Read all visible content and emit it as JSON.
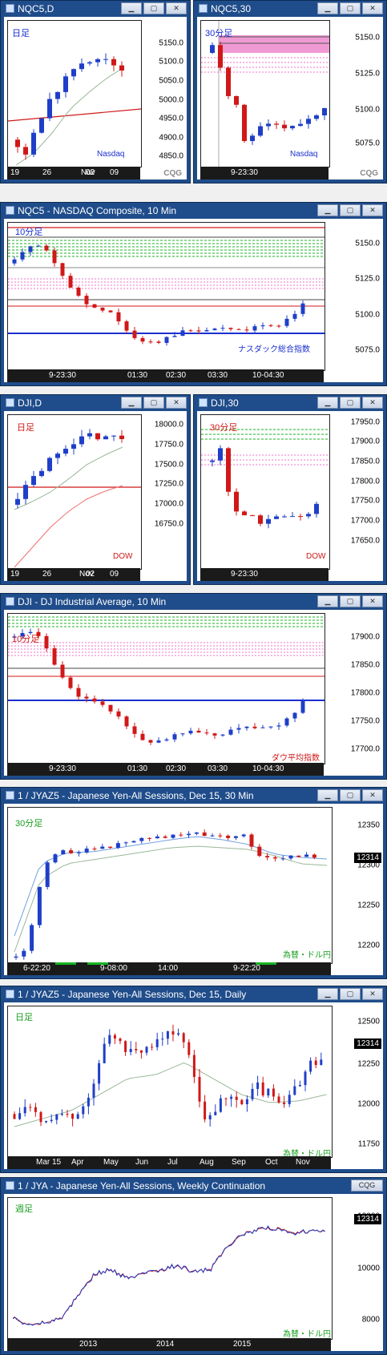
{
  "panels": {
    "nqc5_daily": {
      "title": "NQC5,D",
      "timeframe_label": "日足",
      "instrument_label": "Nasdaq",
      "y_ticks": [
        "5150.0",
        "5100.0",
        "5050.0",
        "5000.0",
        "4950.0",
        "4900.0",
        "4850.0"
      ],
      "x_ticks": [
        "19",
        "26",
        "Nov",
        "02",
        "09"
      ],
      "logo": "CQG"
    },
    "nqc5_30": {
      "title": "NQC5,30",
      "timeframe_label": "30分足",
      "instrument_label": "Nasdaq",
      "y_ticks": [
        "5150.0",
        "5125.0",
        "5100.0",
        "5075.0"
      ],
      "x_ticks": [
        "9-23:30"
      ],
      "logo": "CQG"
    },
    "nasdaq_10min": {
      "title": "NQC5 - NASDAQ Composite, 10 Min",
      "timeframe_label": "10分足",
      "instrument_label": "ナスダック総合指数",
      "y_ticks": [
        "5150.0",
        "5125.0",
        "5100.0",
        "5075.0"
      ],
      "x_ticks": [
        "9-23:30",
        "01:30",
        "02:30",
        "03:30",
        "10-04:30"
      ]
    },
    "dji_daily": {
      "title": "DJI,D",
      "timeframe_label": "日足",
      "instrument_label": "DOW",
      "y_ticks": [
        "18000.0",
        "17750.0",
        "17500.0",
        "17250.0",
        "17000.0",
        "16750.0"
      ],
      "x_ticks": [
        "19",
        "26",
        "Nov",
        "02",
        "09"
      ]
    },
    "dji_30": {
      "title": "DJI,30",
      "timeframe_label": "30分足",
      "instrument_label": "DOW",
      "y_ticks": [
        "17950.0",
        "17900.0",
        "17850.0",
        "17800.0",
        "17750.0",
        "17700.0",
        "17650.0"
      ],
      "x_ticks": [
        "9-23:30"
      ]
    },
    "dji_10min": {
      "title": "DJI - DJ Industrial Average, 10 Min",
      "timeframe_label": "10分足",
      "instrument_label": "ダウ平均指数",
      "y_ticks": [
        "17900.0",
        "17850.0",
        "17800.0",
        "17750.0",
        "17700.0"
      ],
      "x_ticks": [
        "9-23:30",
        "01:30",
        "02:30",
        "03:30",
        "10-04:30"
      ]
    },
    "jyaz5_30": {
      "title": "1 / JYAZ5 - Japanese Yen-All Sessions, Dec 15, 30 Min",
      "timeframe_label": "30分足",
      "instrument_label": "為替・ドル円",
      "price_box": "12314",
      "y_ticks": [
        "12350",
        "12300",
        "12250",
        "12200"
      ],
      "x_ticks": [
        "6-22:20",
        "9-08:00",
        "14:00",
        "9-22:20"
      ]
    },
    "jyaz5_daily": {
      "title": "1 / JYAZ5 - Japanese Yen-All Sessions, Dec 15, Daily",
      "timeframe_label": "日足",
      "instrument_label": "為替・ドル円",
      "price_box": "12314",
      "y_ticks": [
        "12500",
        "12250",
        "12000",
        "11750"
      ],
      "x_ticks": [
        "Mar 15",
        "Apr",
        "May",
        "Jun",
        "Jul",
        "Aug",
        "Sep",
        "Oct",
        "Nov"
      ]
    },
    "jya_weekly": {
      "title": "1 / JYA - Japanese Yen-All Sessions, Weekly Continuation",
      "timeframe_label": "週足",
      "instrument_label": "為替・ドル円",
      "price_box": "12314",
      "y_ticks": [
        "12000",
        "10000",
        "8000"
      ],
      "x_ticks": [
        "2013",
        "2014",
        "2015"
      ],
      "logo": "CQG"
    }
  },
  "colors": {
    "up": "#1f3fc8",
    "down": "#d01818",
    "titlebar": "#1f4c8a",
    "green_line": "#18b324",
    "pink_line": "#f070c8",
    "blue_line": "#1a2fd0"
  }
}
